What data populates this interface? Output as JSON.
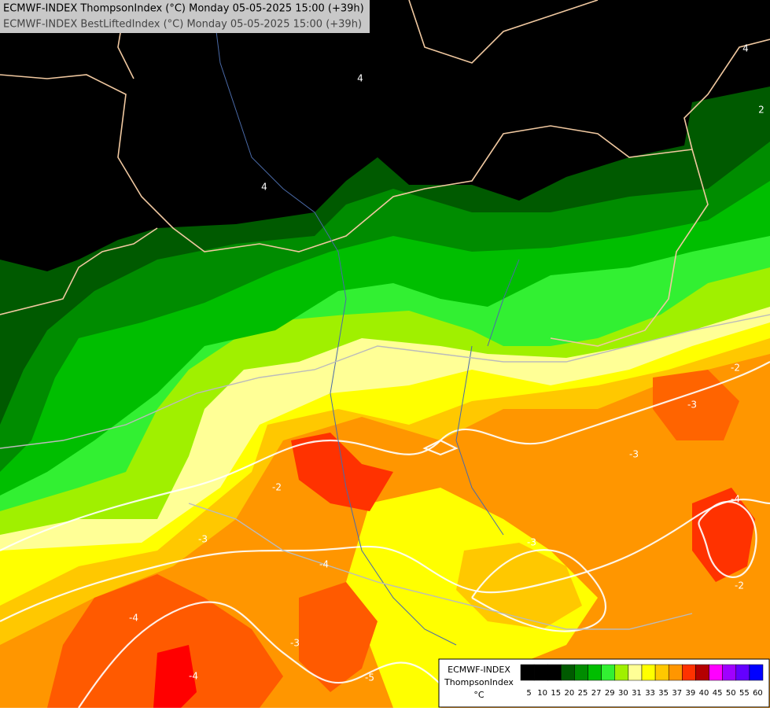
{
  "header": {
    "lines": [
      "ECMWF-INDEX ThompsonIndex (°C) Monday 05-05-2025 15:00 (+39h)",
      "ECMWF-INDEX BestLiftedIndex (°C) Monday 05-05-2025 15:00 (+39h)"
    ]
  },
  "map": {
    "contour_labels": [
      "4",
      "4",
      "2",
      "4",
      "-2",
      "-3",
      "-2",
      "-3",
      "-4",
      "-4",
      "-3",
      "-5",
      "-4",
      "-2",
      "-3",
      "-3",
      "-4"
    ]
  },
  "legend": {
    "title": [
      "ECMWF-INDEX",
      "ThompsonIndex",
      "°C"
    ],
    "items": [
      {
        "label": 5,
        "color": "#000000"
      },
      {
        "label": 10,
        "color": "#000000"
      },
      {
        "label": 15,
        "color": "#000000"
      },
      {
        "label": 20,
        "color": "#005a00"
      },
      {
        "label": 25,
        "color": "#008c00"
      },
      {
        "label": 27,
        "color": "#00be00"
      },
      {
        "label": 29,
        "color": "#32f032"
      },
      {
        "label": 30,
        "color": "#a0f000"
      },
      {
        "label": 31,
        "color": "#ffff96"
      },
      {
        "label": 33,
        "color": "#ffff00"
      },
      {
        "label": 35,
        "color": "#ffc800"
      },
      {
        "label": 37,
        "color": "#ff9600"
      },
      {
        "label": 39,
        "color": "#ff3200"
      },
      {
        "label": 40,
        "color": "#b40000"
      },
      {
        "label": 45,
        "color": "#ff00ff"
      },
      {
        "label": 50,
        "color": "#a000ff"
      },
      {
        "label": 55,
        "color": "#6400ff"
      },
      {
        "label": 60,
        "color": "#0000ff"
      }
    ]
  }
}
